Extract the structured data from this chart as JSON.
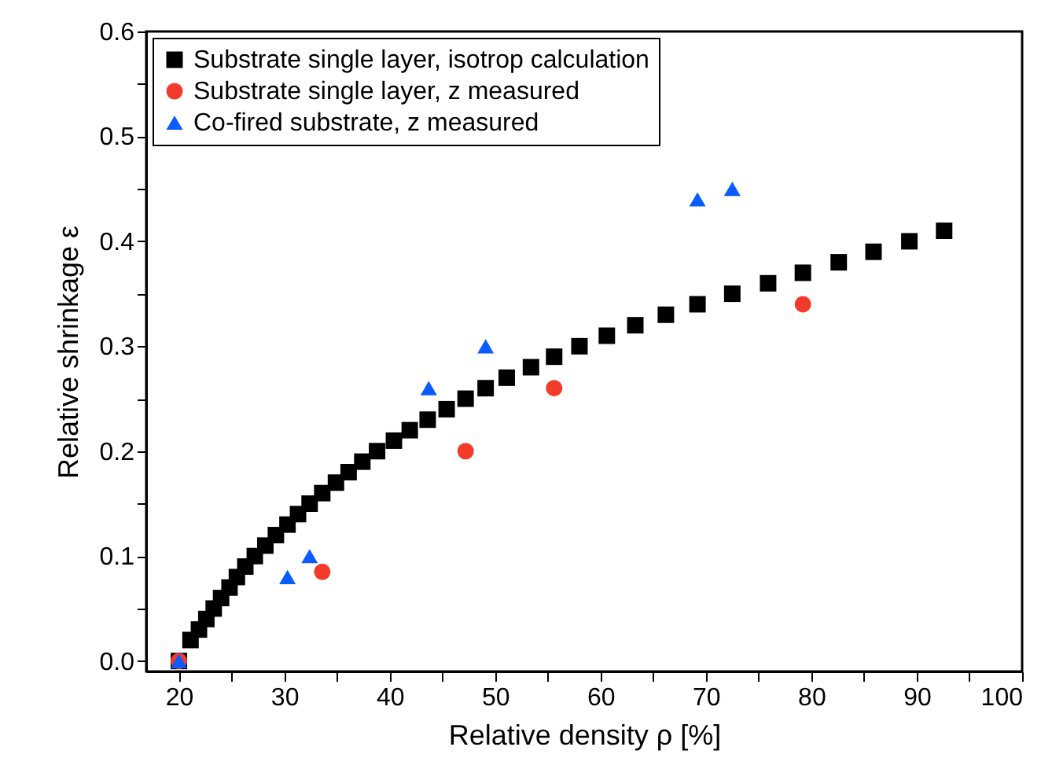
{
  "chart_data": {
    "type": "scatter",
    "xlabel": "Relative density ρ [%]",
    "ylabel": "Relative shrinkage ε",
    "xlim": [
      16.9,
      100
    ],
    "ylim": [
      -0.01,
      0.6
    ],
    "xticks": [
      20,
      {
        "value": 25,
        "label": null
      },
      30,
      {
        "value": 35,
        "label": null
      },
      40,
      {
        "value": 45,
        "label": null
      },
      50,
      {
        "value": 55,
        "label": null
      },
      60,
      {
        "value": 65,
        "label": null
      },
      70,
      {
        "value": 75,
        "label": null
      },
      80,
      {
        "value": 85,
        "label": null
      },
      90,
      {
        "value": 95,
        "label": null
      },
      100
    ],
    "yticks": [
      {
        "value": 0,
        "label": "0.0"
      },
      {
        "value": 0.05,
        "label": null
      },
      0.1,
      {
        "value": 0.15,
        "label": null
      },
      0.2,
      {
        "value": 0.25,
        "label": null
      },
      0.3,
      {
        "value": 0.35,
        "label": null
      },
      0.4,
      {
        "value": 0.45,
        "label": null
      },
      0.5,
      {
        "value": 0.55,
        "label": null
      },
      0.6
    ],
    "grid": false,
    "legend": "top left",
    "series": [
      {
        "name": "Substrate single layer, isotrop calculation",
        "color": "#000000",
        "marker": "square",
        "x": [
          20,
          21.1,
          21.9,
          22.6,
          23.3,
          24.0,
          24.8,
          25.5,
          26.3,
          27.2,
          28.2,
          29.2,
          30.3,
          31.3,
          32.4,
          33.6,
          34.9,
          36.1,
          37.4,
          38.8,
          40.4,
          41.9,
          43.6,
          45.4,
          47.2,
          49.1,
          51.1,
          53.4,
          55.6,
          58.0,
          60.6,
          63.3,
          66.2,
          69.2,
          72.5,
          75.9,
          79.2,
          82.6,
          85.9,
          89.3,
          92.6
        ],
        "values": [
          0,
          0.02,
          0.03,
          0.04,
          0.05,
          0.06,
          0.07,
          0.08,
          0.09,
          0.1,
          0.11,
          0.12,
          0.13,
          0.14,
          0.15,
          0.16,
          0.17,
          0.18,
          0.19,
          0.2,
          0.21,
          0.22,
          0.23,
          0.24,
          0.25,
          0.26,
          0.27,
          0.28,
          0.29,
          0.3,
          0.31,
          0.32,
          0.33,
          0.34,
          0.35,
          0.36,
          0.37,
          0.38,
          0.39,
          0.4,
          0.41
        ]
      },
      {
        "name": "Substrate single layer, z measured",
        "color": "#f23b2a",
        "marker": "circle",
        "x": [
          20,
          33.6,
          47.2,
          55.6,
          79.2
        ],
        "values": [
          0,
          0.085,
          0.2,
          0.26,
          0.34
        ]
      },
      {
        "name": "Co-fired substrate, z measured",
        "color": "#0a5cff",
        "marker": "triangle",
        "x": [
          20,
          30.3,
          32.4,
          43.7,
          49.1,
          69.2,
          72.5
        ],
        "values": [
          0,
          0.08,
          0.1,
          0.26,
          0.3,
          0.44,
          0.45
        ]
      }
    ]
  }
}
